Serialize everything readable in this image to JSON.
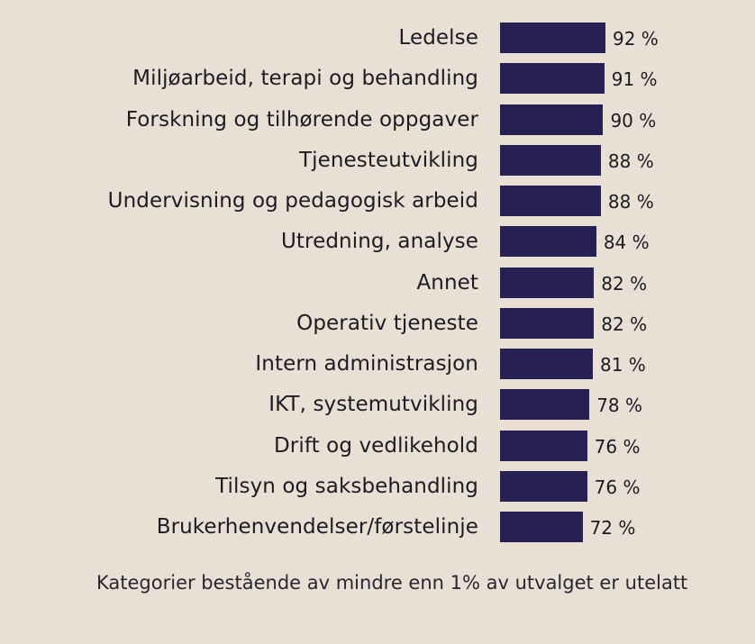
{
  "chart_data": {
    "type": "bar",
    "orientation": "horizontal",
    "categories": [
      "Ledelse",
      "Miljøarbeid, terapi og behandling",
      "Forskning og tilhørende oppgaver",
      "Tjenesteutvikling",
      "Undervisning og pedagogisk arbeid",
      "Utredning, analyse",
      "Annet",
      "Operativ tjeneste",
      "Intern administrasjon",
      "IKT, systemutvikling",
      "Drift og vedlikehold",
      "Tilsyn og saksbehandling",
      "Brukerhenvendelser/førstelinje"
    ],
    "values": [
      92,
      91,
      90,
      88,
      88,
      84,
      82,
      82,
      81,
      78,
      76,
      76,
      72
    ],
    "value_labels": [
      "92 %",
      "91 %",
      "90 %",
      "88 %",
      "88 %",
      "84 %",
      "82 %",
      "82 %",
      "81 %",
      "78 %",
      "76 %",
      "76 %",
      "72 %"
    ],
    "bar_color": "#262053",
    "background_color": "#e8e0d5",
    "grid": false,
    "legend": "none"
  },
  "footnote": "Kategorier bestående av mindre enn 1% av utvalget er utelatt"
}
